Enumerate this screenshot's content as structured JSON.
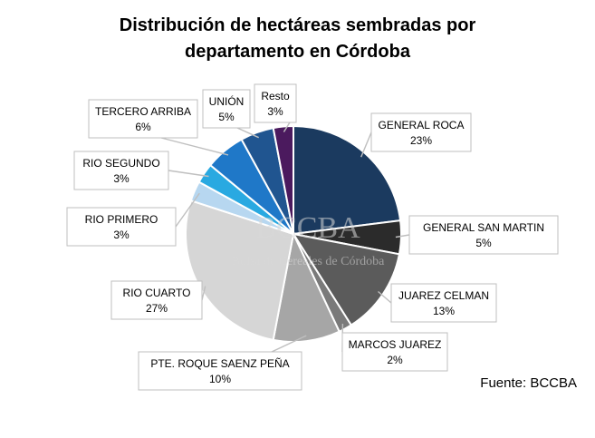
{
  "chart_data": {
    "type": "pie",
    "title": "Distribución de hectáreas sembradas por departamento en Córdoba",
    "title_lines": [
      "Distribución de hectáreas sembradas por",
      "departamento en Córdoba"
    ],
    "unit": "%",
    "slices": [
      {
        "label": "GENERAL ROCA",
        "value": 23,
        "value_label": "23%",
        "color": "#1b3a5f"
      },
      {
        "label": "GENERAL SAN MARTIN",
        "value": 5,
        "value_label": "5%",
        "color": "#2b2b2b"
      },
      {
        "label": "JUAREZ CELMAN",
        "value": 13,
        "value_label": "13%",
        "color": "#5b5b5b"
      },
      {
        "label": "MARCOS JUAREZ",
        "value": 2,
        "value_label": "2%",
        "color": "#7a7a7a"
      },
      {
        "label": "PTE. ROQUE SAENZ PEÑA",
        "value": 10,
        "value_label": "10%",
        "color": "#a6a6a6"
      },
      {
        "label": "RIO CUARTO",
        "value": 27,
        "value_label": "27%",
        "color": "#d6d6d6"
      },
      {
        "label": "RIO PRIMERO",
        "value": 3,
        "value_label": "3%",
        "color": "#b7d7f0"
      },
      {
        "label": "RIO SEGUNDO",
        "value": 3,
        "value_label": "3%",
        "color": "#29a9e1"
      },
      {
        "label": "TERCERO ARRIBA",
        "value": 6,
        "value_label": "6%",
        "color": "#1f78c8"
      },
      {
        "label": "UNIÓN",
        "value": 5,
        "value_label": "5%",
        "color": "#205590"
      },
      {
        "label": "Resto",
        "value": 3,
        "value_label": "3%",
        "color": "#4b1a5e"
      }
    ],
    "legend": "none"
  },
  "watermark": {
    "line1": "BCCBA",
    "line2": "Bolsa de Cereales de Córdoba"
  },
  "source": "Fuente: BCCBA"
}
